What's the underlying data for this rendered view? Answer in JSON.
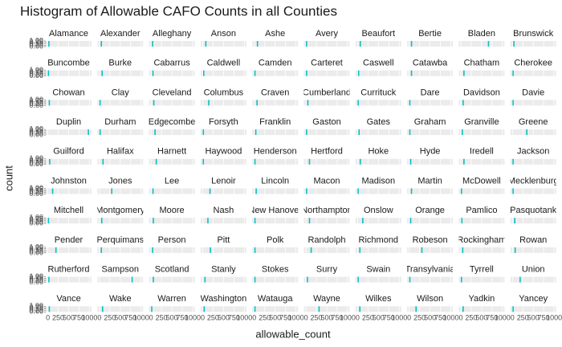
{
  "chart_data": {
    "type": "histogram",
    "title": "Histogram of Allowable CAFO Counts in all Counties",
    "xlabel": "allowable_count",
    "ylabel": "count",
    "color": "#00bfc4",
    "xlim": [
      -50,
      1050
    ],
    "xticks": [
      0,
      250,
      500,
      750,
      1000
    ],
    "ylim": [
      0,
      1
    ],
    "yticks": [
      {
        "value": 0,
        "label": "0.00"
      },
      {
        "value": 0.25,
        "label": "0.25"
      },
      {
        "value": 0.5,
        "label": "0.50"
      },
      {
        "value": 0.75,
        "label": "0.75"
      },
      {
        "value": 1,
        "label": "1.00"
      }
    ],
    "panels": [
      {
        "name": "Alamance",
        "bins": [
          10,
          40
        ],
        "counts": [
          1
        ]
      },
      {
        "name": "Alexander",
        "bins": [
          30,
          60
        ],
        "counts": [
          1
        ]
      },
      {
        "name": "Alleghany",
        "bins": [
          20,
          50
        ],
        "counts": [
          1
        ]
      },
      {
        "name": "Anson",
        "bins": [
          60,
          90
        ],
        "counts": [
          1
        ]
      },
      {
        "name": "Ashe",
        "bins": [
          60,
          90
        ],
        "counts": [
          1
        ]
      },
      {
        "name": "Avery",
        "bins": [
          0,
          30
        ],
        "counts": [
          1
        ]
      },
      {
        "name": "Beaufort",
        "bins": [
          50,
          80
        ],
        "counts": [
          1
        ]
      },
      {
        "name": "Bertie",
        "bins": [
          40,
          70
        ],
        "counts": [
          1
        ]
      },
      {
        "name": "Bladen",
        "bins": [
          650,
          680
        ],
        "counts": [
          1
        ]
      },
      {
        "name": "Brunswick",
        "bins": [
          20,
          50
        ],
        "counts": [
          1
        ]
      },
      {
        "name": "Buncombe",
        "bins": [
          0,
          30
        ],
        "counts": [
          1
        ]
      },
      {
        "name": "Burke",
        "bins": [
          50,
          80
        ],
        "counts": [
          1
        ]
      },
      {
        "name": "Cabarrus",
        "bins": [
          30,
          60
        ],
        "counts": [
          1
        ]
      },
      {
        "name": "Caldwell",
        "bins": [
          10,
          40
        ],
        "counts": [
          1
        ]
      },
      {
        "name": "Camden",
        "bins": [
          0,
          30
        ],
        "counts": [
          1
        ]
      },
      {
        "name": "Carteret",
        "bins": [
          0,
          30
        ],
        "counts": [
          1
        ]
      },
      {
        "name": "Caswell",
        "bins": [
          10,
          40
        ],
        "counts": [
          1
        ]
      },
      {
        "name": "Catawba",
        "bins": [
          40,
          70
        ],
        "counts": [
          1
        ]
      },
      {
        "name": "Chatham",
        "bins": [
          60,
          90
        ],
        "counts": [
          1
        ]
      },
      {
        "name": "Cherokee",
        "bins": [
          0,
          30
        ],
        "counts": [
          1
        ]
      },
      {
        "name": "Chowan",
        "bins": [
          20,
          50
        ],
        "counts": [
          1
        ]
      },
      {
        "name": "Clay",
        "bins": [
          0,
          30
        ],
        "counts": [
          1
        ]
      },
      {
        "name": "Cleveland",
        "bins": [
          50,
          80
        ],
        "counts": [
          1
        ]
      },
      {
        "name": "Columbus",
        "bins": [
          130,
          160
        ],
        "counts": [
          1
        ]
      },
      {
        "name": "Craven",
        "bins": [
          50,
          80
        ],
        "counts": [
          1
        ]
      },
      {
        "name": "Cumberland",
        "bins": [
          30,
          60
        ],
        "counts": [
          1
        ]
      },
      {
        "name": "Currituck",
        "bins": [
          0,
          30
        ],
        "counts": [
          1
        ]
      },
      {
        "name": "Dare",
        "bins": [
          0,
          30
        ],
        "counts": [
          1
        ]
      },
      {
        "name": "Davidson",
        "bins": [
          40,
          70
        ],
        "counts": [
          1
        ]
      },
      {
        "name": "Davie",
        "bins": [
          0,
          30
        ],
        "counts": [
          1
        ]
      },
      {
        "name": "Duplin",
        "bins": [
          960,
          990
        ],
        "counts": [
          1
        ]
      },
      {
        "name": "Durham",
        "bins": [
          0,
          30
        ],
        "counts": [
          1
        ]
      },
      {
        "name": "Edgecombe",
        "bins": [
          80,
          110
        ],
        "counts": [
          1
        ]
      },
      {
        "name": "Forsyth",
        "bins": [
          0,
          30
        ],
        "counts": [
          1
        ]
      },
      {
        "name": "Franklin",
        "bins": [
          20,
          50
        ],
        "counts": [
          1
        ]
      },
      {
        "name": "Gaston",
        "bins": [
          0,
          30
        ],
        "counts": [
          1
        ]
      },
      {
        "name": "Gates",
        "bins": [
          20,
          50
        ],
        "counts": [
          1
        ]
      },
      {
        "name": "Graham",
        "bins": [
          0,
          30
        ],
        "counts": [
          1
        ]
      },
      {
        "name": "Granville",
        "bins": [
          20,
          50
        ],
        "counts": [
          1
        ]
      },
      {
        "name": "Greene",
        "bins": [
          330,
          360
        ],
        "counts": [
          1
        ]
      },
      {
        "name": "Guilford",
        "bins": [
          30,
          60
        ],
        "counts": [
          1
        ]
      },
      {
        "name": "Halifax",
        "bins": [
          70,
          100
        ],
        "counts": [
          1
        ]
      },
      {
        "name": "Harnett",
        "bins": [
          110,
          140
        ],
        "counts": [
          1
        ]
      },
      {
        "name": "Haywood",
        "bins": [
          0,
          30
        ],
        "counts": [
          1
        ]
      },
      {
        "name": "Henderson",
        "bins": [
          0,
          30
        ],
        "counts": [
          1
        ]
      },
      {
        "name": "Hertford",
        "bins": [
          70,
          100
        ],
        "counts": [
          1
        ]
      },
      {
        "name": "Hoke",
        "bins": [
          50,
          80
        ],
        "counts": [
          1
        ]
      },
      {
        "name": "Hyde",
        "bins": [
          20,
          50
        ],
        "counts": [
          1
        ]
      },
      {
        "name": "Iredell",
        "bins": [
          60,
          90
        ],
        "counts": [
          1
        ]
      },
      {
        "name": "Jackson",
        "bins": [
          0,
          30
        ],
        "counts": [
          1
        ]
      },
      {
        "name": "Johnston",
        "bins": [
          100,
          130
        ],
        "counts": [
          1
        ]
      },
      {
        "name": "Jones",
        "bins": [
          280,
          310
        ],
        "counts": [
          1
        ]
      },
      {
        "name": "Lee",
        "bins": [
          30,
          60
        ],
        "counts": [
          1
        ]
      },
      {
        "name": "Lenoir",
        "bins": [
          160,
          190
        ],
        "counts": [
          1
        ]
      },
      {
        "name": "Lincoln",
        "bins": [
          30,
          60
        ],
        "counts": [
          1
        ]
      },
      {
        "name": "Macon",
        "bins": [
          0,
          30
        ],
        "counts": [
          1
        ]
      },
      {
        "name": "Madison",
        "bins": [
          0,
          30
        ],
        "counts": [
          1
        ]
      },
      {
        "name": "Martin",
        "bins": [
          40,
          70
        ],
        "counts": [
          1
        ]
      },
      {
        "name": "McDowell",
        "bins": [
          0,
          30
        ],
        "counts": [
          1
        ]
      },
      {
        "name": "Mecklenburg",
        "bins": [
          0,
          30
        ],
        "counts": [
          1
        ]
      },
      {
        "name": "Mitchell",
        "bins": [
          0,
          30
        ],
        "counts": [
          1
        ]
      },
      {
        "name": "Montgomery",
        "bins": [
          40,
          70
        ],
        "counts": [
          1
        ]
      },
      {
        "name": "Moore",
        "bins": [
          40,
          70
        ],
        "counts": [
          1
        ]
      },
      {
        "name": "Nash",
        "bins": [
          110,
          140
        ],
        "counts": [
          1
        ]
      },
      {
        "name": "New Hanover",
        "bins": [
          0,
          30
        ],
        "counts": [
          1
        ]
      },
      {
        "name": "Northampton",
        "bins": [
          70,
          100
        ],
        "counts": [
          1
        ]
      },
      {
        "name": "Onslow",
        "bins": [
          110,
          140
        ],
        "counts": [
          1
        ]
      },
      {
        "name": "Orange",
        "bins": [
          20,
          50
        ],
        "counts": [
          1
        ]
      },
      {
        "name": "Pamlico",
        "bins": [
          10,
          40
        ],
        "counts": [
          1
        ]
      },
      {
        "name": "Pasquotank",
        "bins": [
          40,
          70
        ],
        "counts": [
          1
        ]
      },
      {
        "name": "Pender",
        "bins": [
          180,
          210
        ],
        "counts": [
          1
        ]
      },
      {
        "name": "Perquimans",
        "bins": [
          30,
          60
        ],
        "counts": [
          1
        ]
      },
      {
        "name": "Person",
        "bins": [
          20,
          50
        ],
        "counts": [
          1
        ]
      },
      {
        "name": "Pitt",
        "bins": [
          170,
          200
        ],
        "counts": [
          1
        ]
      },
      {
        "name": "Polk",
        "bins": [
          0,
          30
        ],
        "counts": [
          1
        ]
      },
      {
        "name": "Randolph",
        "bins": [
          110,
          140
        ],
        "counts": [
          1
        ]
      },
      {
        "name": "Richmond",
        "bins": [
          40,
          70
        ],
        "counts": [
          1
        ]
      },
      {
        "name": "Robeson",
        "bins": [
          290,
          320
        ],
        "counts": [
          1
        ]
      },
      {
        "name": "Rockingham",
        "bins": [
          30,
          60
        ],
        "counts": [
          1
        ]
      },
      {
        "name": "Rowan",
        "bins": [
          50,
          80
        ],
        "counts": [
          1
        ]
      },
      {
        "name": "Rutherford",
        "bins": [
          10,
          40
        ],
        "counts": [
          1
        ]
      },
      {
        "name": "Sampson",
        "bins": [
          770,
          800
        ],
        "counts": [
          1
        ]
      },
      {
        "name": "Scotland",
        "bins": [
          40,
          70
        ],
        "counts": [
          1
        ]
      },
      {
        "name": "Stanly",
        "bins": [
          40,
          70
        ],
        "counts": [
          1
        ]
      },
      {
        "name": "Stokes",
        "bins": [
          0,
          30
        ],
        "counts": [
          1
        ]
      },
      {
        "name": "Surry",
        "bins": [
          20,
          50
        ],
        "counts": [
          1
        ]
      },
      {
        "name": "Swain",
        "bins": [
          0,
          30
        ],
        "counts": [
          1
        ]
      },
      {
        "name": "Transylvania",
        "bins": [
          0,
          30
        ],
        "counts": [
          1
        ]
      },
      {
        "name": "Tyrrell",
        "bins": [
          0,
          30
        ],
        "counts": [
          1
        ]
      },
      {
        "name": "Union",
        "bins": [
          170,
          200
        ],
        "counts": [
          1
        ]
      },
      {
        "name": "Vance",
        "bins": [
          20,
          50
        ],
        "counts": [
          1
        ]
      },
      {
        "name": "Wake",
        "bins": [
          60,
          90
        ],
        "counts": [
          1
        ]
      },
      {
        "name": "Warren",
        "bins": [
          0,
          30
        ],
        "counts": [
          1
        ]
      },
      {
        "name": "Washington",
        "bins": [
          20,
          50
        ],
        "counts": [
          1
        ]
      },
      {
        "name": "Watauga",
        "bins": [
          0,
          30
        ],
        "counts": [
          1
        ]
      },
      {
        "name": "Wayne",
        "bins": [
          300,
          330
        ],
        "counts": [
          1
        ]
      },
      {
        "name": "Wilkes",
        "bins": [
          40,
          70
        ],
        "counts": [
          1
        ]
      },
      {
        "name": "Wilson",
        "bins": [
          150,
          180
        ],
        "counts": [
          1
        ]
      },
      {
        "name": "Yadkin",
        "bins": [
          40,
          70
        ],
        "counts": [
          1
        ]
      },
      {
        "name": "Yancey",
        "bins": [
          0,
          30
        ],
        "counts": [
          1
        ]
      }
    ]
  }
}
